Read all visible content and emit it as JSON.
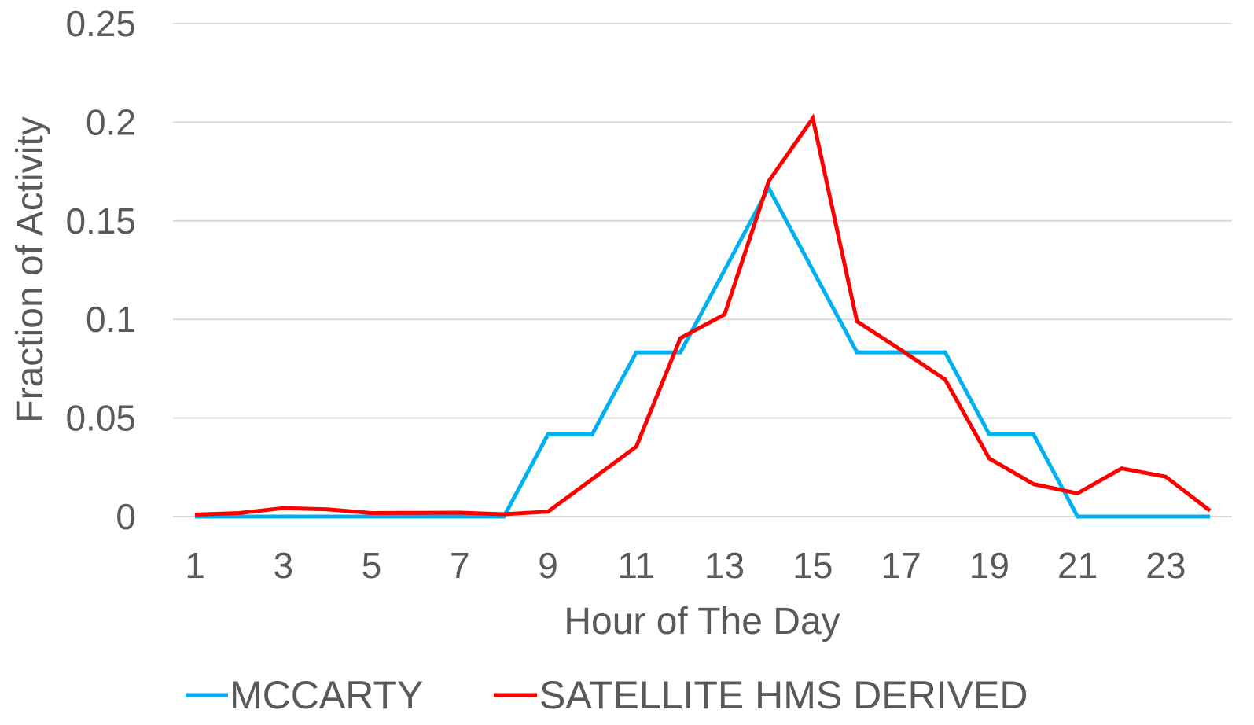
{
  "chart_data": {
    "type": "line",
    "title": "",
    "xlabel": "Hour of The Day",
    "ylabel": "Fraction of Activity",
    "x": [
      1,
      2,
      3,
      4,
      5,
      6,
      7,
      8,
      9,
      10,
      11,
      12,
      13,
      14,
      15,
      16,
      17,
      18,
      19,
      20,
      21,
      22,
      23,
      24
    ],
    "x_tick_labels": [
      "1",
      "3",
      "5",
      "7",
      "9",
      "11",
      "13",
      "15",
      "17",
      "19",
      "21",
      "23"
    ],
    "y_tick_labels": [
      "0",
      "0.05",
      "0.1",
      "0.15",
      "0.2",
      "0.25"
    ],
    "ylim": [
      0,
      0.25
    ],
    "grid": true,
    "legend_position": "bottom",
    "series": [
      {
        "name": "MCCARTY",
        "color": "#00b0f0",
        "values": [
          0,
          0,
          0,
          0,
          0,
          0,
          0,
          0,
          0.0417,
          0.0417,
          0.0833,
          0.0833,
          0.125,
          0.1667,
          0.125,
          0.0833,
          0.0833,
          0.0833,
          0.0417,
          0.0417,
          0,
          0,
          0,
          0
        ]
      },
      {
        "name": "SATELLITE HMS DERIVED",
        "color": "#ff0000",
        "values": [
          0.001,
          0.0018,
          0.0043,
          0.0037,
          0.0018,
          0.0019,
          0.002,
          0.0012,
          0.0025,
          0.019,
          0.0355,
          0.0905,
          0.1025,
          0.17,
          0.202,
          0.099,
          0.0845,
          0.0695,
          0.0295,
          0.0165,
          0.0118,
          0.0245,
          0.0202,
          0.003
        ]
      }
    ]
  }
}
